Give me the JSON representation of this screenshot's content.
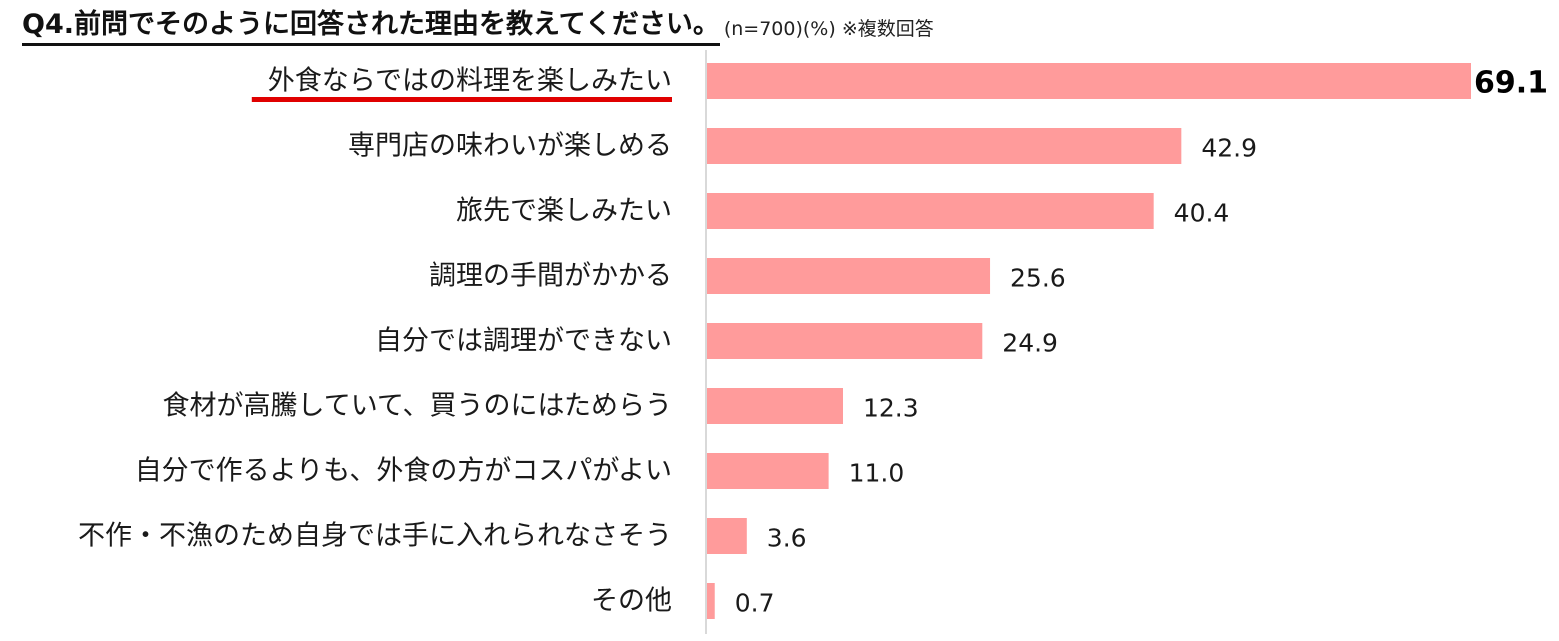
{
  "title": {
    "main": "Q4.前問でそのように回答された理由を教えてください。",
    "note": "(n=700)(%) ※複数回答"
  },
  "colors": {
    "bar": "#FF9B9B",
    "highlight_underline": "#E00000",
    "axis": "#D9D9D9",
    "text": "#1a1a1a"
  },
  "chart_data": {
    "type": "bar",
    "orientation": "horizontal",
    "categories": [
      "外食ならではの料理を楽しみたい",
      "専門店の味わいが楽しめる",
      "旅先で楽しみたい",
      "調理の手間がかかる",
      "自分では調理ができない",
      "食材が高騰していて、買うのにはためらう",
      "自分で作るよりも、外食の方がコスパがよい",
      "不作・不漁のため自身では手に入れられなさそう",
      "その他"
    ],
    "values": [
      69.1,
      42.9,
      40.4,
      25.6,
      24.9,
      12.3,
      11.0,
      3.6,
      0.7
    ],
    "value_labels": [
      "69.1",
      "42.9",
      "40.4",
      "25.6",
      "24.9",
      "12.3",
      "11.0",
      "3.6",
      "0.7"
    ],
    "highlighted_index": 0,
    "xlim": [
      0,
      69.1
    ],
    "grid": false,
    "legend": "none"
  }
}
